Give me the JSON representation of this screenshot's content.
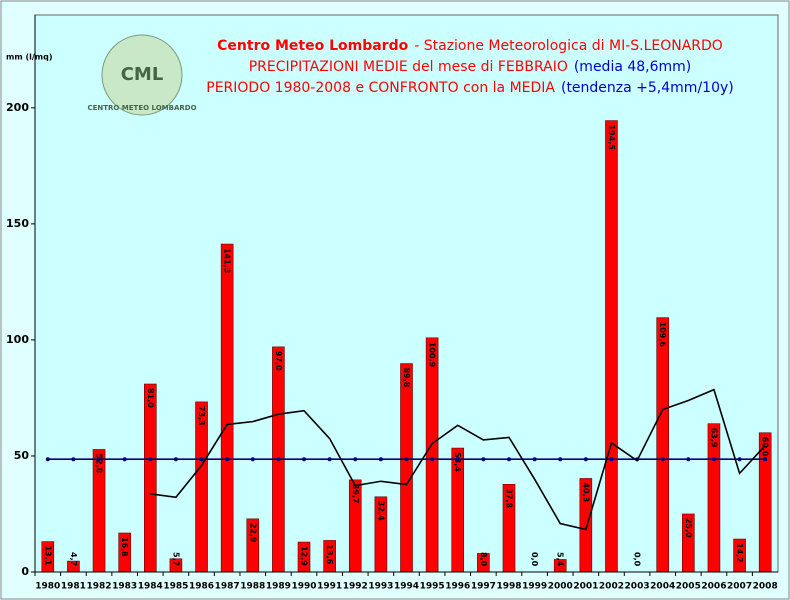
{
  "chart_data": {
    "type": "bar",
    "title": [
      [
        {
          "text": "Centro Meteo Lombardo",
          "color": "#ff0000",
          "bold": true
        },
        {
          "text": "- Stazione Meteorologica di MI-S.LEONARDO",
          "color": "#ff0000"
        }
      ],
      [
        {
          "text": "PRECIPITAZIONI MEDIE del mese di FEBBRAIO",
          "color": "#ff0000"
        },
        {
          "text": "(media 48,6mm)",
          "color": "#0000cc"
        }
      ],
      [
        {
          "text": "PERIODO 1980-2008 e CONFRONTO con la MEDIA",
          "color": "#ff0000"
        },
        {
          "text": "(tendenza +5,4mm/10y)",
          "color": "#0000cc"
        }
      ]
    ],
    "logo": {
      "initials": "CML",
      "ring": "CENTRO METEO LOMBARDO"
    },
    "y_label": "mm (l/mq)",
    "categories": [
      "1980",
      "1981",
      "1982",
      "1983",
      "1984",
      "1985",
      "1986",
      "1987",
      "1988",
      "1989",
      "1990",
      "1991",
      "1992",
      "1993",
      "1994",
      "1995",
      "1996",
      "1997",
      "1998",
      "1999",
      "2000",
      "2001",
      "2002",
      "2003",
      "2004",
      "2005",
      "2006",
      "2007",
      "2008"
    ],
    "series": [
      {
        "type": "bar",
        "color": "#ff0000",
        "values": [
          13.1,
          4.7,
          52.8,
          16.8,
          81.0,
          5.7,
          73.3,
          141.3,
          22.9,
          97.0,
          12.9,
          13.6,
          39.7,
          32.4,
          89.8,
          100.9,
          53.4,
          8.0,
          37.8,
          0.0,
          5.4,
          40.3,
          194.5,
          0.0,
          109.6,
          25.0,
          63.9,
          14.2,
          60.0
        ],
        "value_labels": [
          "13,1",
          "4,7",
          "52,8",
          "16,8",
          "81,0",
          "5,7",
          "73,3",
          "141,3",
          "22,9",
          "97,0",
          "12,9",
          "13,6",
          "39,7",
          "32,4",
          "89,8",
          "100,9",
          "53,4",
          "8,0",
          "37,8",
          "0,0",
          "5,4",
          "40,3",
          "194,5",
          "0,0",
          "109,6",
          "25,0",
          "63,9",
          "14,2",
          "60,0"
        ]
      },
      {
        "type": "line",
        "color": "#000080",
        "markers": true,
        "values": [
          48.6,
          48.6,
          48.6,
          48.6,
          48.6,
          48.6,
          48.6,
          48.6,
          48.6,
          48.6,
          48.6,
          48.6,
          48.6,
          48.6,
          48.6,
          48.6,
          48.6,
          48.6,
          48.6,
          48.6,
          48.6,
          48.6,
          48.6,
          48.6,
          48.6,
          48.6,
          48.6,
          48.6,
          48.6
        ]
      },
      {
        "type": "line",
        "color": "#000000",
        "markers": false,
        "values": [
          null,
          null,
          null,
          null,
          33.7,
          32.2,
          45.9,
          63.6,
          64.8,
          68.0,
          69.5,
          57.5,
          37.2,
          39.1,
          37.7,
          55.3,
          63.2,
          56.9,
          58.0,
          40.0,
          20.9,
          18.3,
          55.6,
          48.0,
          70.0,
          73.9,
          78.6,
          42.5,
          54.5
        ]
      }
    ],
    "ylim": [
      0,
      240
    ],
    "yticks": [
      0,
      50,
      100,
      150,
      200
    ]
  }
}
